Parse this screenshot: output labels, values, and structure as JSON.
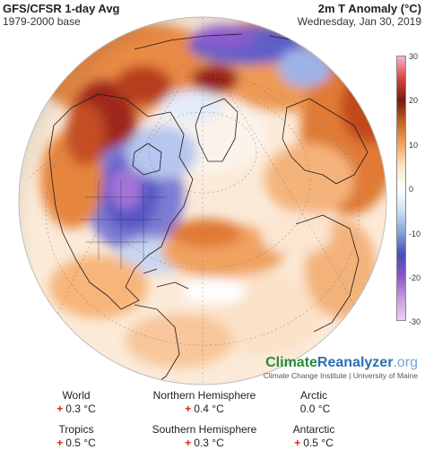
{
  "header": {
    "left_title": "GFS/CFSR 1-day Avg",
    "left_subtitle": "1979-2000 base",
    "right_title": "2m T Anomaly (°C)",
    "right_subtitle": "Wednesday, Jan 30, 2019"
  },
  "colorbar": {
    "ticks": [
      "30",
      "20",
      "10",
      "0",
      "-10",
      "-20",
      "-30"
    ],
    "colors": [
      "#f4b6c8",
      "#d6453c",
      "#7a1a0c",
      "#c46422",
      "#f4a35b",
      "#fde4c8",
      "#ffffff",
      "#cfe3f4",
      "#7fa6d8",
      "#4c4cb8",
      "#8a55c8",
      "#c69be0",
      "#ead2f2"
    ]
  },
  "brand": {
    "name_a": "Climate",
    "name_b": "Reanalyzer",
    "name_c": ".org",
    "subtitle": "Climate Change Institute | University of Maine"
  },
  "stats": {
    "world": {
      "label": "World",
      "sign": "+",
      "value": "0.3 °C"
    },
    "nh": {
      "label": "Northern Hemisphere",
      "sign": "+",
      "value": "0.4 °C"
    },
    "arctic": {
      "label": "Arctic",
      "sign": "",
      "value": "0.0 °C"
    },
    "tropics": {
      "label": "Tropics",
      "sign": "+",
      "value": "0.5 °C"
    },
    "sh": {
      "label": "Southern Hemisphere",
      "sign": "+",
      "value": "0.3 °C"
    },
    "antarctic": {
      "label": "Antarctic",
      "sign": "+",
      "value": "0.5 °C"
    }
  },
  "colors": {
    "warm_dark": "#8e1f10",
    "warm": "#d86a28",
    "warm_light": "#f7b57a",
    "warm_faint": "#fbe1c6",
    "cold_light": "#b9cdee",
    "cold": "#5656c4",
    "cold_deep": "#9966d0",
    "neutral": "#f6f6f6",
    "ocean_white": "#ffffff"
  }
}
